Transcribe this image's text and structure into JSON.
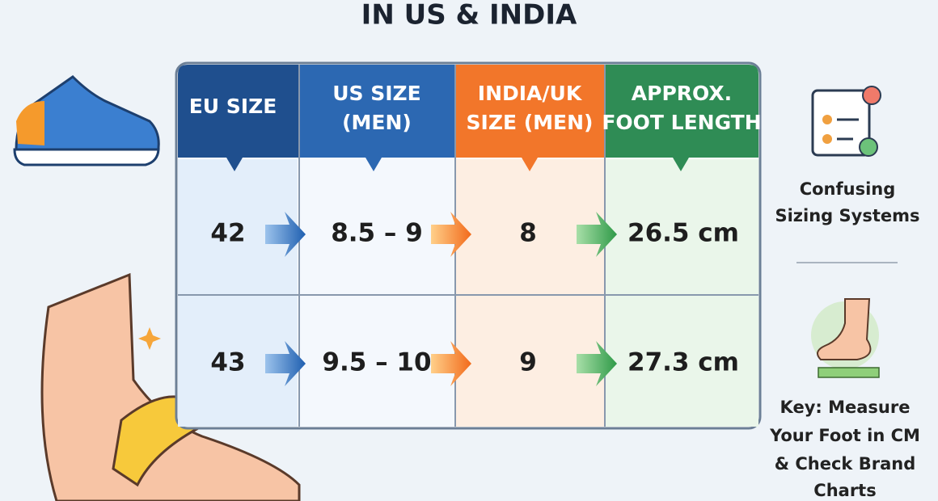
{
  "title": "IN US & INDIA",
  "table": {
    "headers": [
      [
        "EU SIZE"
      ],
      [
        "US SIZE",
        "(MEN)"
      ],
      [
        "INDIA/UK",
        "SIZE (MEN)"
      ],
      [
        "APPROX.",
        "FOOT LENGTH"
      ]
    ],
    "rows": [
      [
        "42",
        "8.5 – 9",
        "8",
        "26.5 cm"
      ],
      [
        "43",
        "9.5 – 10",
        "9",
        "27.3 cm"
      ]
    ]
  },
  "sidebar": {
    "problem": [
      "Confusing",
      "Sizing Systems"
    ],
    "key": [
      "Key: Measure",
      "Your Foot in CM",
      "& Check Brand",
      "Charts"
    ]
  }
}
